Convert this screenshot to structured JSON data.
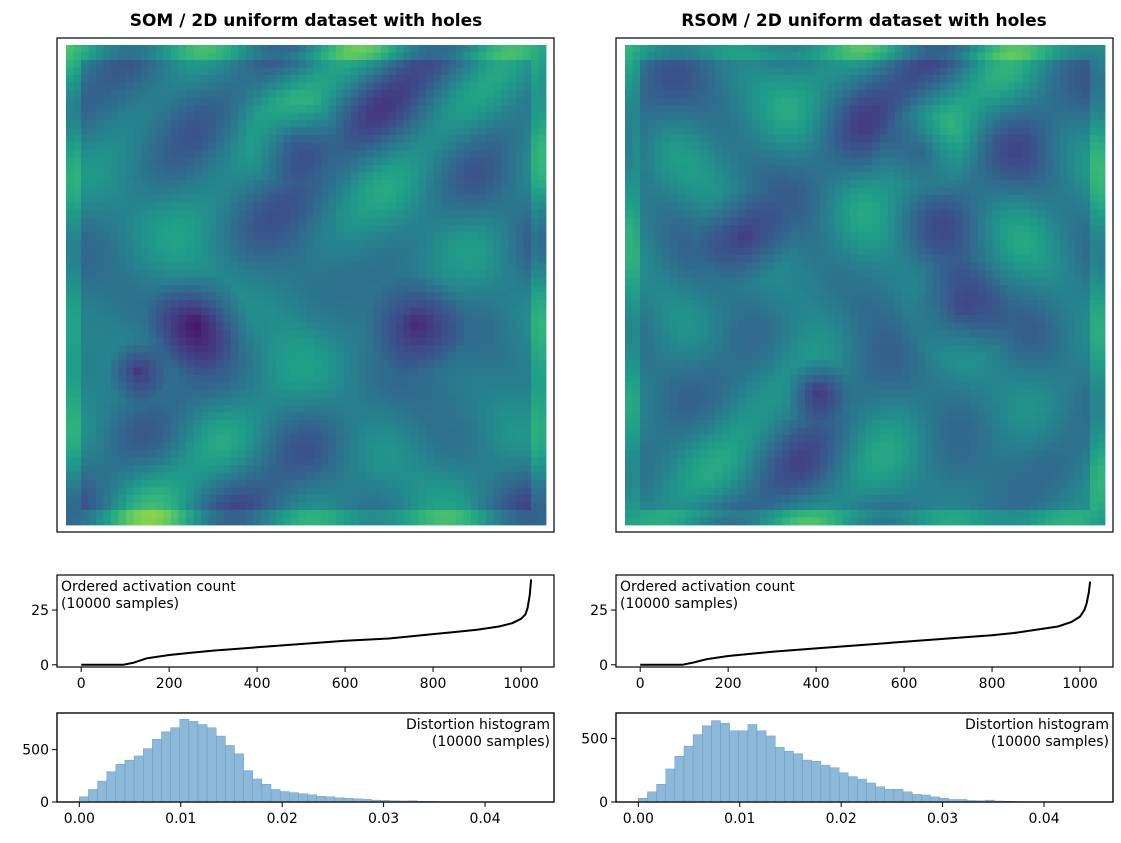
{
  "chart_data": [
    {
      "type": "heatmap",
      "title": "SOM / 2D uniform dataset with holes",
      "colormap": "viridis",
      "axes_visible": false,
      "holes": [
        {
          "cx": 0.27,
          "cy": 0.58,
          "r": 0.11
        },
        {
          "cx": 0.73,
          "cy": 0.58,
          "r": 0.11
        },
        {
          "cx": 0.47,
          "cy": 0.2,
          "r": 0.09
        },
        {
          "cx": 0.15,
          "cy": 0.68,
          "r": 0.07
        }
      ]
    },
    {
      "type": "heatmap",
      "title": "RSOM / 2D uniform dataset with holes",
      "colormap": "viridis",
      "axes_visible": false,
      "holes": [
        {
          "cx": 0.25,
          "cy": 0.4,
          "r": 0.1
        },
        {
          "cx": 0.7,
          "cy": 0.55,
          "r": 0.11
        },
        {
          "cx": 0.62,
          "cy": 0.22,
          "r": 0.08
        },
        {
          "cx": 0.4,
          "cy": 0.72,
          "r": 0.07
        }
      ]
    },
    {
      "type": "line",
      "annotation": [
        "Ordered activation count",
        "(10000 samples)"
      ],
      "xlim": [
        -55,
        1075
      ],
      "ylim": [
        -1,
        41
      ],
      "xticks": [
        0,
        200,
        400,
        600,
        800,
        1000
      ],
      "yticks": [
        0,
        25
      ],
      "color": "#000000",
      "x": [
        0,
        60,
        95,
        120,
        150,
        200,
        250,
        300,
        400,
        500,
        600,
        700,
        800,
        850,
        900,
        950,
        980,
        1000,
        1010,
        1015,
        1020,
        1023
      ],
      "y": [
        0,
        0,
        0,
        1,
        3,
        4.5,
        5.5,
        6.5,
        8,
        9.5,
        11,
        12,
        14,
        15,
        16,
        17.5,
        19,
        21,
        23,
        26,
        32,
        39
      ]
    },
    {
      "type": "line",
      "annotation": [
        "Ordered activation count",
        "(10000 samples)"
      ],
      "xlim": [
        -55,
        1075
      ],
      "ylim": [
        -1,
        41
      ],
      "xticks": [
        0,
        200,
        400,
        600,
        800,
        1000
      ],
      "yticks": [
        0,
        25
      ],
      "color": "#000000",
      "x": [
        0,
        60,
        95,
        120,
        150,
        200,
        250,
        300,
        400,
        500,
        600,
        700,
        800,
        850,
        900,
        950,
        980,
        1000,
        1010,
        1015,
        1020,
        1023
      ],
      "y": [
        0,
        0,
        0,
        1,
        2.5,
        4,
        5,
        6,
        7.5,
        9,
        10.5,
        12,
        13.5,
        14.5,
        16,
        17.5,
        19.5,
        22,
        25,
        28,
        33,
        38
      ]
    },
    {
      "type": "bar",
      "annotation": [
        "Distortion histogram",
        "(10000 samples)"
      ],
      "xlim": [
        -0.0022,
        0.0468
      ],
      "ylim": [
        0,
        850
      ],
      "xticks": [
        0.0,
        0.01,
        0.02,
        0.03,
        0.04
      ],
      "xticklabels": [
        "0.00",
        "0.01",
        "0.02",
        "0.03",
        "0.04"
      ],
      "yticks": [
        0,
        500
      ],
      "bin_start": 0.0,
      "bin_width": 0.0009,
      "color": "#8cb8da",
      "values": [
        50,
        120,
        200,
        290,
        360,
        400,
        440,
        510,
        600,
        670,
        710,
        790,
        770,
        740,
        710,
        630,
        540,
        460,
        300,
        220,
        170,
        120,
        100,
        90,
        80,
        70,
        55,
        50,
        40,
        35,
        30,
        25,
        18,
        15,
        12,
        10,
        12,
        8,
        6,
        4,
        3,
        2,
        2,
        1,
        1,
        1,
        0,
        0,
        0,
        0
      ]
    },
    {
      "type": "bar",
      "annotation": [
        "Distortion histogram",
        "(10000 samples)"
      ],
      "xlim": [
        -0.0022,
        0.0468
      ],
      "ylim": [
        0,
        700
      ],
      "xticks": [
        0.0,
        0.01,
        0.02,
        0.03,
        0.04
      ],
      "xticklabels": [
        "0.00",
        "0.01",
        "0.02",
        "0.03",
        "0.04"
      ],
      "yticks": [
        0,
        500
      ],
      "bin_start": 0.0,
      "bin_width": 0.0009,
      "color": "#8cb8da",
      "values": [
        30,
        80,
        140,
        260,
        360,
        440,
        530,
        600,
        640,
        620,
        560,
        560,
        610,
        560,
        520,
        430,
        400,
        380,
        330,
        320,
        290,
        270,
        230,
        200,
        180,
        150,
        120,
        100,
        100,
        80,
        60,
        55,
        40,
        30,
        20,
        20,
        12,
        10,
        15,
        8,
        6,
        4,
        3,
        2,
        1,
        1,
        0,
        0,
        0,
        0
      ]
    }
  ]
}
